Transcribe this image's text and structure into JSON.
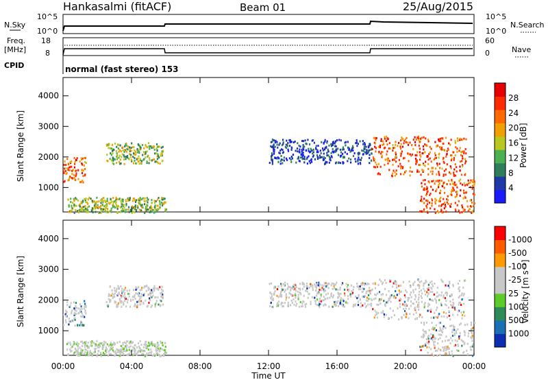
{
  "header": {
    "station": "Hankasalmi (fitACF)",
    "beam": "Beam 01",
    "date": "25/Aug/2015"
  },
  "noise_panel": {
    "left_label": "N.Sky",
    "left_ticks": [
      "10^5",
      "10^0"
    ],
    "right_ticks": [
      "10^5",
      "10^0"
    ],
    "right_label": "N.Search"
  },
  "freq_panel": {
    "left_label_1": "Freq.",
    "left_label_2": "[MHz]",
    "left_ticks": [
      "18",
      "8"
    ],
    "right_ticks": [
      "60",
      "0"
    ],
    "right_label": "Nave"
  },
  "cpid_panel": {
    "label": "CPID",
    "mode": "normal (fast stereo) 153"
  },
  "colors": {
    "power_scale": [
      "#1a1aff",
      "#1f3aa6",
      "#2e7d5b",
      "#4caf50",
      "#b8c81e",
      "#f0a000",
      "#ff6a00",
      "#ff2a00",
      "#e60000"
    ],
    "velocity_scale": [
      "#0d2db3",
      "#1a6fb5",
      "#2e8b57",
      "#5ecb2a",
      "#c8c8c8",
      "#c8c8c8",
      "#ff9a00",
      "#ff5a00",
      "#ff0000"
    ]
  },
  "chart_data": [
    {
      "type": "heatmap",
      "name": "power",
      "ylabel": "Slant Range [km]",
      "yticks": [
        "1000",
        "2000",
        "3000",
        "4000"
      ],
      "ylim": [
        200,
        4600
      ],
      "xlim": [
        "00:00",
        "24:00"
      ],
      "colorbar_label": "Power [dB]",
      "colorbar_ticks": [
        "4",
        "8",
        "12",
        "16",
        "20",
        "24",
        "28"
      ],
      "colorbar_range": [
        0,
        30
      ],
      "echo_regions": [
        {
          "t_start": 0.0,
          "t_end": 1.3,
          "r_min": 1200,
          "r_max": 2000,
          "level": "high"
        },
        {
          "t_start": 0.2,
          "t_end": 6.0,
          "r_min": 200,
          "r_max": 700,
          "level": "medium"
        },
        {
          "t_start": 2.5,
          "t_end": 5.8,
          "r_min": 1800,
          "r_max": 2500,
          "level": "medium"
        },
        {
          "t_start": 12.0,
          "t_end": 18.0,
          "r_min": 1800,
          "r_max": 2600,
          "level": "low"
        },
        {
          "t_start": 18.0,
          "t_end": 23.5,
          "r_min": 1400,
          "r_max": 2700,
          "level": "high"
        },
        {
          "t_start": 20.8,
          "t_end": 24.0,
          "r_min": 200,
          "r_max": 1300,
          "level": "high"
        }
      ]
    },
    {
      "type": "heatmap",
      "name": "velocity",
      "ylabel": "Slant Range [km]",
      "xlabel": "Time UT",
      "yticks": [
        "1000",
        "2000",
        "3000",
        "4000"
      ],
      "xticks": [
        "00:00",
        "04:00",
        "08:00",
        "12:00",
        "16:00",
        "20:00",
        "00:00"
      ],
      "ylim": [
        200,
        4600
      ],
      "colorbar_label": "Velocity [m s⁻¹]",
      "colorbar_ticks": [
        "1000",
        "500",
        "100",
        "25",
        "-25",
        "-100",
        "-500",
        "-1000"
      ]
    }
  ]
}
